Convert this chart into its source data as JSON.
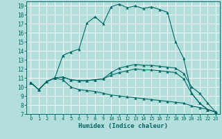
{
  "xlabel": "Humidex (Indice chaleur)",
  "xlim": [
    -0.5,
    23.5
  ],
  "ylim": [
    7,
    19.5
  ],
  "yticks": [
    7,
    8,
    9,
    10,
    11,
    12,
    13,
    14,
    15,
    16,
    17,
    18,
    19
  ],
  "xticks": [
    0,
    1,
    2,
    3,
    4,
    5,
    6,
    7,
    8,
    9,
    10,
    11,
    12,
    13,
    14,
    15,
    16,
    17,
    18,
    19,
    20,
    21,
    22,
    23
  ],
  "bg_color": "#b2dfdb",
  "grid_color": "#d0eeea",
  "line_color": "#006666",
  "line1_y": [
    10.5,
    9.7,
    10.6,
    11.0,
    13.5,
    13.9,
    14.2,
    17.1,
    17.8,
    17.0,
    18.9,
    19.2,
    18.8,
    19.0,
    18.7,
    18.9,
    18.6,
    18.3,
    15.0,
    13.2,
    9.3,
    8.2,
    7.5,
    7.2
  ],
  "line2_y": [
    10.5,
    9.7,
    10.6,
    11.0,
    11.1,
    10.8,
    10.7,
    10.7,
    10.8,
    10.9,
    11.3,
    11.6,
    11.8,
    12.0,
    11.9,
    11.9,
    11.8,
    11.7,
    11.6,
    10.9,
    9.3,
    8.2,
    7.5,
    7.2
  ],
  "line3_y": [
    10.5,
    9.7,
    10.6,
    11.0,
    10.8,
    10.0,
    9.7,
    9.6,
    9.5,
    9.3,
    9.1,
    9.0,
    8.9,
    8.8,
    8.7,
    8.6,
    8.5,
    8.4,
    8.3,
    8.2,
    7.9,
    7.7,
    7.5,
    7.2
  ],
  "line4_y": [
    10.5,
    9.7,
    10.6,
    11.0,
    11.1,
    10.8,
    10.7,
    10.7,
    10.8,
    10.9,
    11.6,
    12.1,
    12.3,
    12.5,
    12.4,
    12.4,
    12.3,
    12.2,
    12.1,
    11.5,
    10.0,
    9.3,
    8.2,
    7.2
  ]
}
